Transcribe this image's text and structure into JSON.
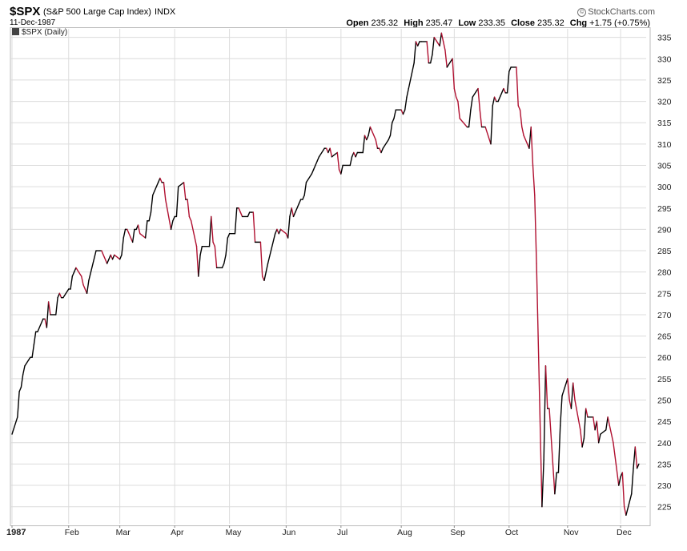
{
  "header": {
    "symbol": "$SPX",
    "description": "(S&P 500 Large Cap Index)",
    "exchange": "INDX",
    "date": "11-Dec-1987",
    "credit": "StockCharts.com",
    "legend": "$SPX (Daily)",
    "ohlc": {
      "open_label": "Open",
      "open": "235.32",
      "high_label": "High",
      "high": "235.47",
      "low_label": "Low",
      "low": "233.35",
      "close_label": "Close",
      "close": "235.32",
      "chg_label": "Chg",
      "chg": "+1.75 (+0.75%)"
    }
  },
  "colors": {
    "up": "#000000",
    "down": "#b01030",
    "grid": "#dcdcdc"
  },
  "chart_data": {
    "type": "line",
    "title": "$SPX (Daily)",
    "ylim": [
      221,
      337
    ],
    "yticks": [
      225,
      230,
      235,
      240,
      245,
      250,
      255,
      260,
      265,
      270,
      275,
      280,
      285,
      290,
      295,
      300,
      305,
      310,
      315,
      320,
      325,
      330,
      335
    ],
    "xticks": [
      {
        "label": "1987",
        "date": "1987-01-02"
      },
      {
        "label": "Feb",
        "date": "1987-02-02"
      },
      {
        "label": "Mar",
        "date": "1987-03-02"
      },
      {
        "label": "Apr",
        "date": "1987-04-01"
      },
      {
        "label": "May",
        "date": "1987-05-01"
      },
      {
        "label": "Jun",
        "date": "1987-06-01"
      },
      {
        "label": "Jul",
        "date": "1987-07-01"
      },
      {
        "label": "Aug",
        "date": "1987-08-03"
      },
      {
        "label": "Sep",
        "date": "1987-09-01"
      },
      {
        "label": "Oct",
        "date": "1987-10-01"
      },
      {
        "label": "Nov",
        "date": "1987-11-02"
      },
      {
        "label": "Dec",
        "date": "1987-12-01"
      }
    ],
    "series": [
      {
        "points": [
          [
            "1987-01-02",
            242
          ],
          [
            "1987-01-05",
            246
          ],
          [
            "1987-01-06",
            252
          ],
          [
            "1987-01-07",
            253
          ],
          [
            "1987-01-08",
            256
          ],
          [
            "1987-01-09",
            258
          ],
          [
            "1987-01-12",
            260
          ],
          [
            "1987-01-13",
            260
          ],
          [
            "1987-01-14",
            263
          ],
          [
            "1987-01-15",
            266
          ],
          [
            "1987-01-16",
            266
          ],
          [
            "1987-01-19",
            269
          ],
          [
            "1987-01-20",
            269
          ],
          [
            "1987-01-21",
            267
          ],
          [
            "1987-01-22",
            273
          ],
          [
            "1987-01-23",
            270
          ],
          [
            "1987-01-26",
            270
          ],
          [
            "1987-01-27",
            274
          ],
          [
            "1987-01-28",
            275
          ],
          [
            "1987-01-29",
            274
          ],
          [
            "1987-01-30",
            274
          ],
          [
            "1987-02-02",
            276
          ],
          [
            "1987-02-03",
            276
          ],
          [
            "1987-02-04",
            279
          ],
          [
            "1987-02-05",
            280
          ],
          [
            "1987-02-06",
            281
          ],
          [
            "1987-02-09",
            279
          ],
          [
            "1987-02-10",
            277
          ],
          [
            "1987-02-11",
            276
          ],
          [
            "1987-02-12",
            275
          ],
          [
            "1987-02-13",
            278
          ],
          [
            "1987-02-17",
            285
          ],
          [
            "1987-02-18",
            285
          ],
          [
            "1987-02-19",
            285
          ],
          [
            "1987-02-20",
            285
          ],
          [
            "1987-02-23",
            282
          ],
          [
            "1987-02-24",
            283
          ],
          [
            "1987-02-25",
            284
          ],
          [
            "1987-02-26",
            283
          ],
          [
            "1987-02-27",
            284
          ],
          [
            "1987-03-02",
            283
          ],
          [
            "1987-03-03",
            284
          ],
          [
            "1987-03-04",
            288
          ],
          [
            "1987-03-05",
            290
          ],
          [
            "1987-03-06",
            290
          ],
          [
            "1987-03-09",
            287
          ],
          [
            "1987-03-10",
            290
          ],
          [
            "1987-03-11",
            290
          ],
          [
            "1987-03-12",
            291
          ],
          [
            "1987-03-13",
            289
          ],
          [
            "1987-03-16",
            288
          ],
          [
            "1987-03-17",
            292
          ],
          [
            "1987-03-18",
            292
          ],
          [
            "1987-03-19",
            294
          ],
          [
            "1987-03-20",
            298
          ],
          [
            "1987-03-23",
            301
          ],
          [
            "1987-03-24",
            302
          ],
          [
            "1987-03-25",
            301
          ],
          [
            "1987-03-26",
            301
          ],
          [
            "1987-03-27",
            297
          ],
          [
            "1987-03-30",
            290
          ],
          [
            "1987-03-31",
            292
          ],
          [
            "1987-04-01",
            293
          ],
          [
            "1987-04-02",
            293
          ],
          [
            "1987-04-03",
            300
          ],
          [
            "1987-04-06",
            301
          ],
          [
            "1987-04-07",
            297
          ],
          [
            "1987-04-08",
            297
          ],
          [
            "1987-04-09",
            293
          ],
          [
            "1987-04-10",
            292
          ],
          [
            "1987-04-13",
            286
          ],
          [
            "1987-04-14",
            279
          ],
          [
            "1987-04-15",
            284
          ],
          [
            "1987-04-16",
            286
          ],
          [
            "1987-04-20",
            286
          ],
          [
            "1987-04-21",
            293
          ],
          [
            "1987-04-22",
            287
          ],
          [
            "1987-04-23",
            286
          ],
          [
            "1987-04-24",
            281
          ],
          [
            "1987-04-27",
            281
          ],
          [
            "1987-04-28",
            282
          ],
          [
            "1987-04-29",
            284
          ],
          [
            "1987-04-30",
            288
          ],
          [
            "1987-05-01",
            289
          ],
          [
            "1987-05-04",
            289
          ],
          [
            "1987-05-05",
            295
          ],
          [
            "1987-05-06",
            295
          ],
          [
            "1987-05-07",
            294
          ],
          [
            "1987-05-08",
            293
          ],
          [
            "1987-05-11",
            293
          ],
          [
            "1987-05-12",
            294
          ],
          [
            "1987-05-13",
            294
          ],
          [
            "1987-05-14",
            294
          ],
          [
            "1987-05-15",
            287
          ],
          [
            "1987-05-18",
            287
          ],
          [
            "1987-05-19",
            279
          ],
          [
            "1987-05-20",
            278
          ],
          [
            "1987-05-21",
            280
          ],
          [
            "1987-05-22",
            282
          ],
          [
            "1987-05-26",
            289
          ],
          [
            "1987-05-27",
            290
          ],
          [
            "1987-05-28",
            289
          ],
          [
            "1987-05-29",
            290
          ],
          [
            "1987-06-01",
            289
          ],
          [
            "1987-06-02",
            288
          ],
          [
            "1987-06-03",
            293
          ],
          [
            "1987-06-04",
            295
          ],
          [
            "1987-06-05",
            293
          ],
          [
            "1987-06-08",
            296
          ],
          [
            "1987-06-09",
            297
          ],
          [
            "1987-06-10",
            297
          ],
          [
            "1987-06-11",
            298
          ],
          [
            "1987-06-12",
            301
          ],
          [
            "1987-06-15",
            303
          ],
          [
            "1987-06-16",
            304
          ],
          [
            "1987-06-17",
            305
          ],
          [
            "1987-06-18",
            306
          ],
          [
            "1987-06-19",
            307
          ],
          [
            "1987-06-22",
            309
          ],
          [
            "1987-06-23",
            309
          ],
          [
            "1987-06-24",
            308
          ],
          [
            "1987-06-25",
            309
          ],
          [
            "1987-06-26",
            307
          ],
          [
            "1987-06-29",
            308
          ],
          [
            "1987-06-30",
            304
          ],
          [
            "1987-07-01",
            303
          ],
          [
            "1987-07-02",
            305
          ],
          [
            "1987-07-06",
            305
          ],
          [
            "1987-07-07",
            307
          ],
          [
            "1987-07-08",
            308
          ],
          [
            "1987-07-09",
            307
          ],
          [
            "1987-07-10",
            308
          ],
          [
            "1987-07-13",
            308
          ],
          [
            "1987-07-14",
            312
          ],
          [
            "1987-07-15",
            311
          ],
          [
            "1987-07-16",
            312
          ],
          [
            "1987-07-17",
            314
          ],
          [
            "1987-07-20",
            311
          ],
          [
            "1987-07-21",
            309
          ],
          [
            "1987-07-22",
            309
          ],
          [
            "1987-07-23",
            308
          ],
          [
            "1987-07-24",
            309
          ],
          [
            "1987-07-27",
            311
          ],
          [
            "1987-07-28",
            312
          ],
          [
            "1987-07-29",
            315
          ],
          [
            "1987-07-30",
            316
          ],
          [
            "1987-07-31",
            318
          ],
          [
            "1987-08-03",
            318
          ],
          [
            "1987-08-04",
            317
          ],
          [
            "1987-08-05",
            318
          ],
          [
            "1987-08-06",
            321
          ],
          [
            "1987-08-07",
            323
          ],
          [
            "1987-08-10",
            329
          ],
          [
            "1987-08-11",
            334
          ],
          [
            "1987-08-12",
            333
          ],
          [
            "1987-08-13",
            334
          ],
          [
            "1987-08-14",
            334
          ],
          [
            "1987-08-17",
            334
          ],
          [
            "1987-08-18",
            329
          ],
          [
            "1987-08-19",
            329
          ],
          [
            "1987-08-20",
            331
          ],
          [
            "1987-08-21",
            335
          ],
          [
            "1987-08-24",
            333
          ],
          [
            "1987-08-25",
            336
          ],
          [
            "1987-08-26",
            334
          ],
          [
            "1987-08-27",
            332
          ],
          [
            "1987-08-28",
            328
          ],
          [
            "1987-08-31",
            330
          ],
          [
            "1987-09-01",
            323
          ],
          [
            "1987-09-02",
            321
          ],
          [
            "1987-09-03",
            320
          ],
          [
            "1987-09-04",
            316
          ],
          [
            "1987-09-08",
            314
          ],
          [
            "1987-09-09",
            314
          ],
          [
            "1987-09-10",
            318
          ],
          [
            "1987-09-11",
            321
          ],
          [
            "1987-09-14",
            323
          ],
          [
            "1987-09-15",
            318
          ],
          [
            "1987-09-16",
            314
          ],
          [
            "1987-09-17",
            314
          ],
          [
            "1987-09-18",
            314
          ],
          [
            "1987-09-21",
            310
          ],
          [
            "1987-09-22",
            319
          ],
          [
            "1987-09-23",
            321
          ],
          [
            "1987-09-24",
            320
          ],
          [
            "1987-09-25",
            320
          ],
          [
            "1987-09-28",
            323
          ],
          [
            "1987-09-29",
            322
          ],
          [
            "1987-09-30",
            322
          ],
          [
            "1987-10-01",
            327
          ],
          [
            "1987-10-02",
            328
          ],
          [
            "1987-10-05",
            328
          ],
          [
            "1987-10-06",
            319
          ],
          [
            "1987-10-07",
            318
          ],
          [
            "1987-10-08",
            314
          ],
          [
            "1987-10-09",
            312
          ],
          [
            "1987-10-12",
            309
          ],
          [
            "1987-10-13",
            314
          ],
          [
            "1987-10-14",
            305
          ],
          [
            "1987-10-15",
            298
          ],
          [
            "1987-10-16",
            282
          ],
          [
            "1987-10-19",
            225
          ],
          [
            "1987-10-20",
            236
          ],
          [
            "1987-10-21",
            258
          ],
          [
            "1987-10-22",
            248
          ],
          [
            "1987-10-23",
            248
          ],
          [
            "1987-10-26",
            228
          ],
          [
            "1987-10-27",
            233
          ],
          [
            "1987-10-28",
            233
          ],
          [
            "1987-10-29",
            244
          ],
          [
            "1987-10-30",
            251
          ],
          [
            "1987-11-02",
            255
          ],
          [
            "1987-11-03",
            250
          ],
          [
            "1987-11-04",
            248
          ],
          [
            "1987-11-05",
            254
          ],
          [
            "1987-11-06",
            250
          ],
          [
            "1987-11-09",
            243
          ],
          [
            "1987-11-10",
            239
          ],
          [
            "1987-11-11",
            241
          ],
          [
            "1987-11-12",
            248
          ],
          [
            "1987-11-13",
            246
          ],
          [
            "1987-11-16",
            246
          ],
          [
            "1987-11-17",
            243
          ],
          [
            "1987-11-18",
            245
          ],
          [
            "1987-11-19",
            240
          ],
          [
            "1987-11-20",
            242
          ],
          [
            "1987-11-23",
            243
          ],
          [
            "1987-11-24",
            246
          ],
          [
            "1987-11-25",
            244
          ],
          [
            "1987-11-27",
            240
          ],
          [
            "1987-11-30",
            230
          ],
          [
            "1987-12-01",
            232
          ],
          [
            "1987-12-02",
            233
          ],
          [
            "1987-12-03",
            225
          ],
          [
            "1987-12-04",
            223
          ],
          [
            "1987-12-07",
            228
          ],
          [
            "1987-12-08",
            234
          ],
          [
            "1987-12-09",
            239
          ],
          [
            "1987-12-10",
            234
          ],
          [
            "1987-12-11",
            235
          ]
        ]
      }
    ],
    "grid": true
  }
}
